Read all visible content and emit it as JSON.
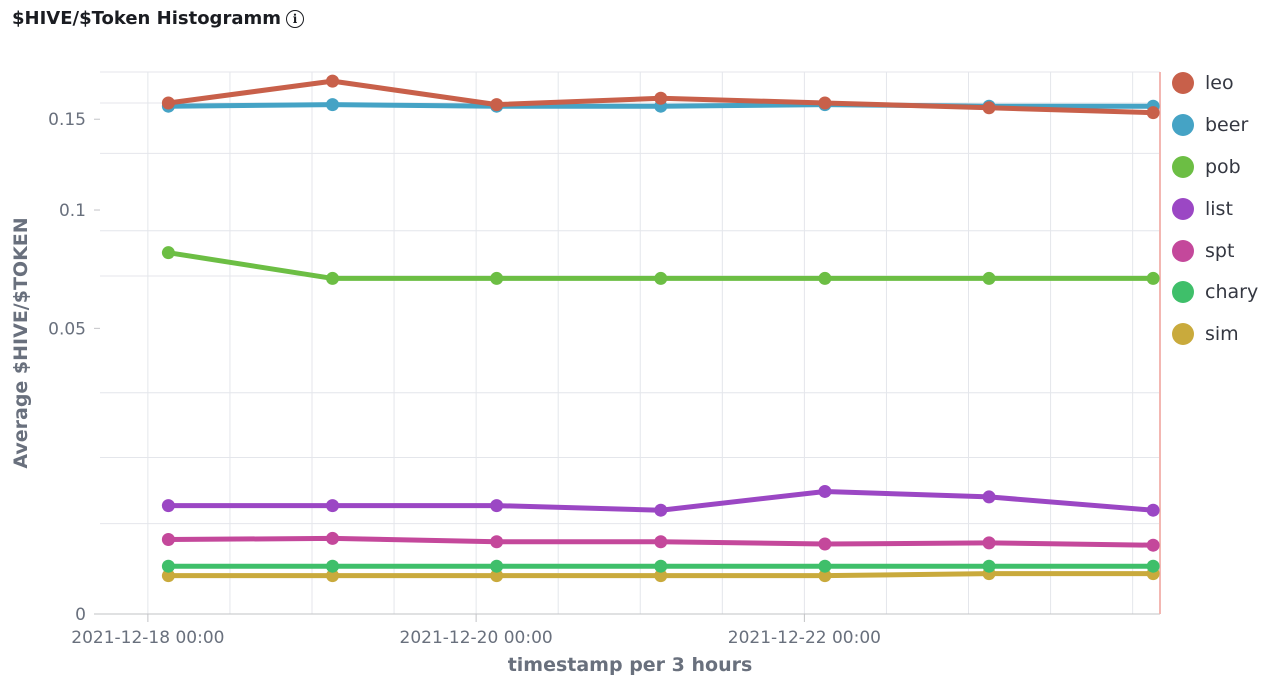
{
  "panel": {
    "title": "$HIVE/$Token Histogramm",
    "info_icon": "info-icon"
  },
  "colors": {
    "grid": "#e4e6eb",
    "axis": "#c2c3c6",
    "right_axis": "#f3b7b2"
  },
  "chart_data": {
    "type": "line",
    "title": "$HIVE/$Token Histogramm",
    "xlabel": "timestamp per 3 hours",
    "ylabel": "Average $HIVE/$TOKEN",
    "y_scale": "sqrt",
    "ylim": [
      0,
      0.18
    ],
    "y_ticks": [
      0,
      0.05,
      0.1,
      0.15
    ],
    "y_tick_labels": [
      "0",
      "0.05",
      "0.1",
      "0.15"
    ],
    "x_range": [
      "2021-12-17 17:00",
      "2021-12-24 04:00"
    ],
    "x_ticks": [
      "2021-12-18 00:00",
      "2021-12-20 00:00",
      "2021-12-22 00:00"
    ],
    "x_tick_labels": [
      "2021-12-18 00:00",
      "2021-12-20 00:00",
      "2021-12-22 00:00"
    ],
    "x": [
      "2021-12-18 03:00",
      "2021-12-19 03:00",
      "2021-12-20 03:00",
      "2021-12-21 03:00",
      "2021-12-22 03:00",
      "2021-12-23 03:00",
      "2021-12-24 03:00"
    ],
    "grid": true,
    "legend_position": "right",
    "series": [
      {
        "name": "leo",
        "color": "#c8604a",
        "values": [
          0.16,
          0.174,
          0.159,
          0.163,
          0.16,
          0.157,
          0.154
        ]
      },
      {
        "name": "beer",
        "color": "#45a3c5",
        "values": [
          0.158,
          0.159,
          0.158,
          0.158,
          0.159,
          0.158,
          0.158
        ]
      },
      {
        "name": "pob",
        "color": "#6cbe44",
        "values": [
          0.08,
          0.069,
          0.069,
          0.069,
          0.069,
          0.069,
          0.069
        ]
      },
      {
        "name": "list",
        "color": "#9b47c4",
        "values": [
          0.0072,
          0.0072,
          0.0072,
          0.0066,
          0.0092,
          0.0084,
          0.0066
        ]
      },
      {
        "name": "spt",
        "color": "#c4489b",
        "values": [
          0.0034,
          0.0035,
          0.0032,
          0.0032,
          0.003,
          0.0031,
          0.0029
        ]
      },
      {
        "name": "chary",
        "color": "#3fbf6a",
        "values": [
          0.0014,
          0.0014,
          0.0014,
          0.0014,
          0.0014,
          0.0014,
          0.0014
        ]
      },
      {
        "name": "sim",
        "color": "#c9aa3c",
        "values": [
          0.0009,
          0.0009,
          0.0009,
          0.0009,
          0.0009,
          0.001,
          0.001
        ]
      }
    ]
  }
}
